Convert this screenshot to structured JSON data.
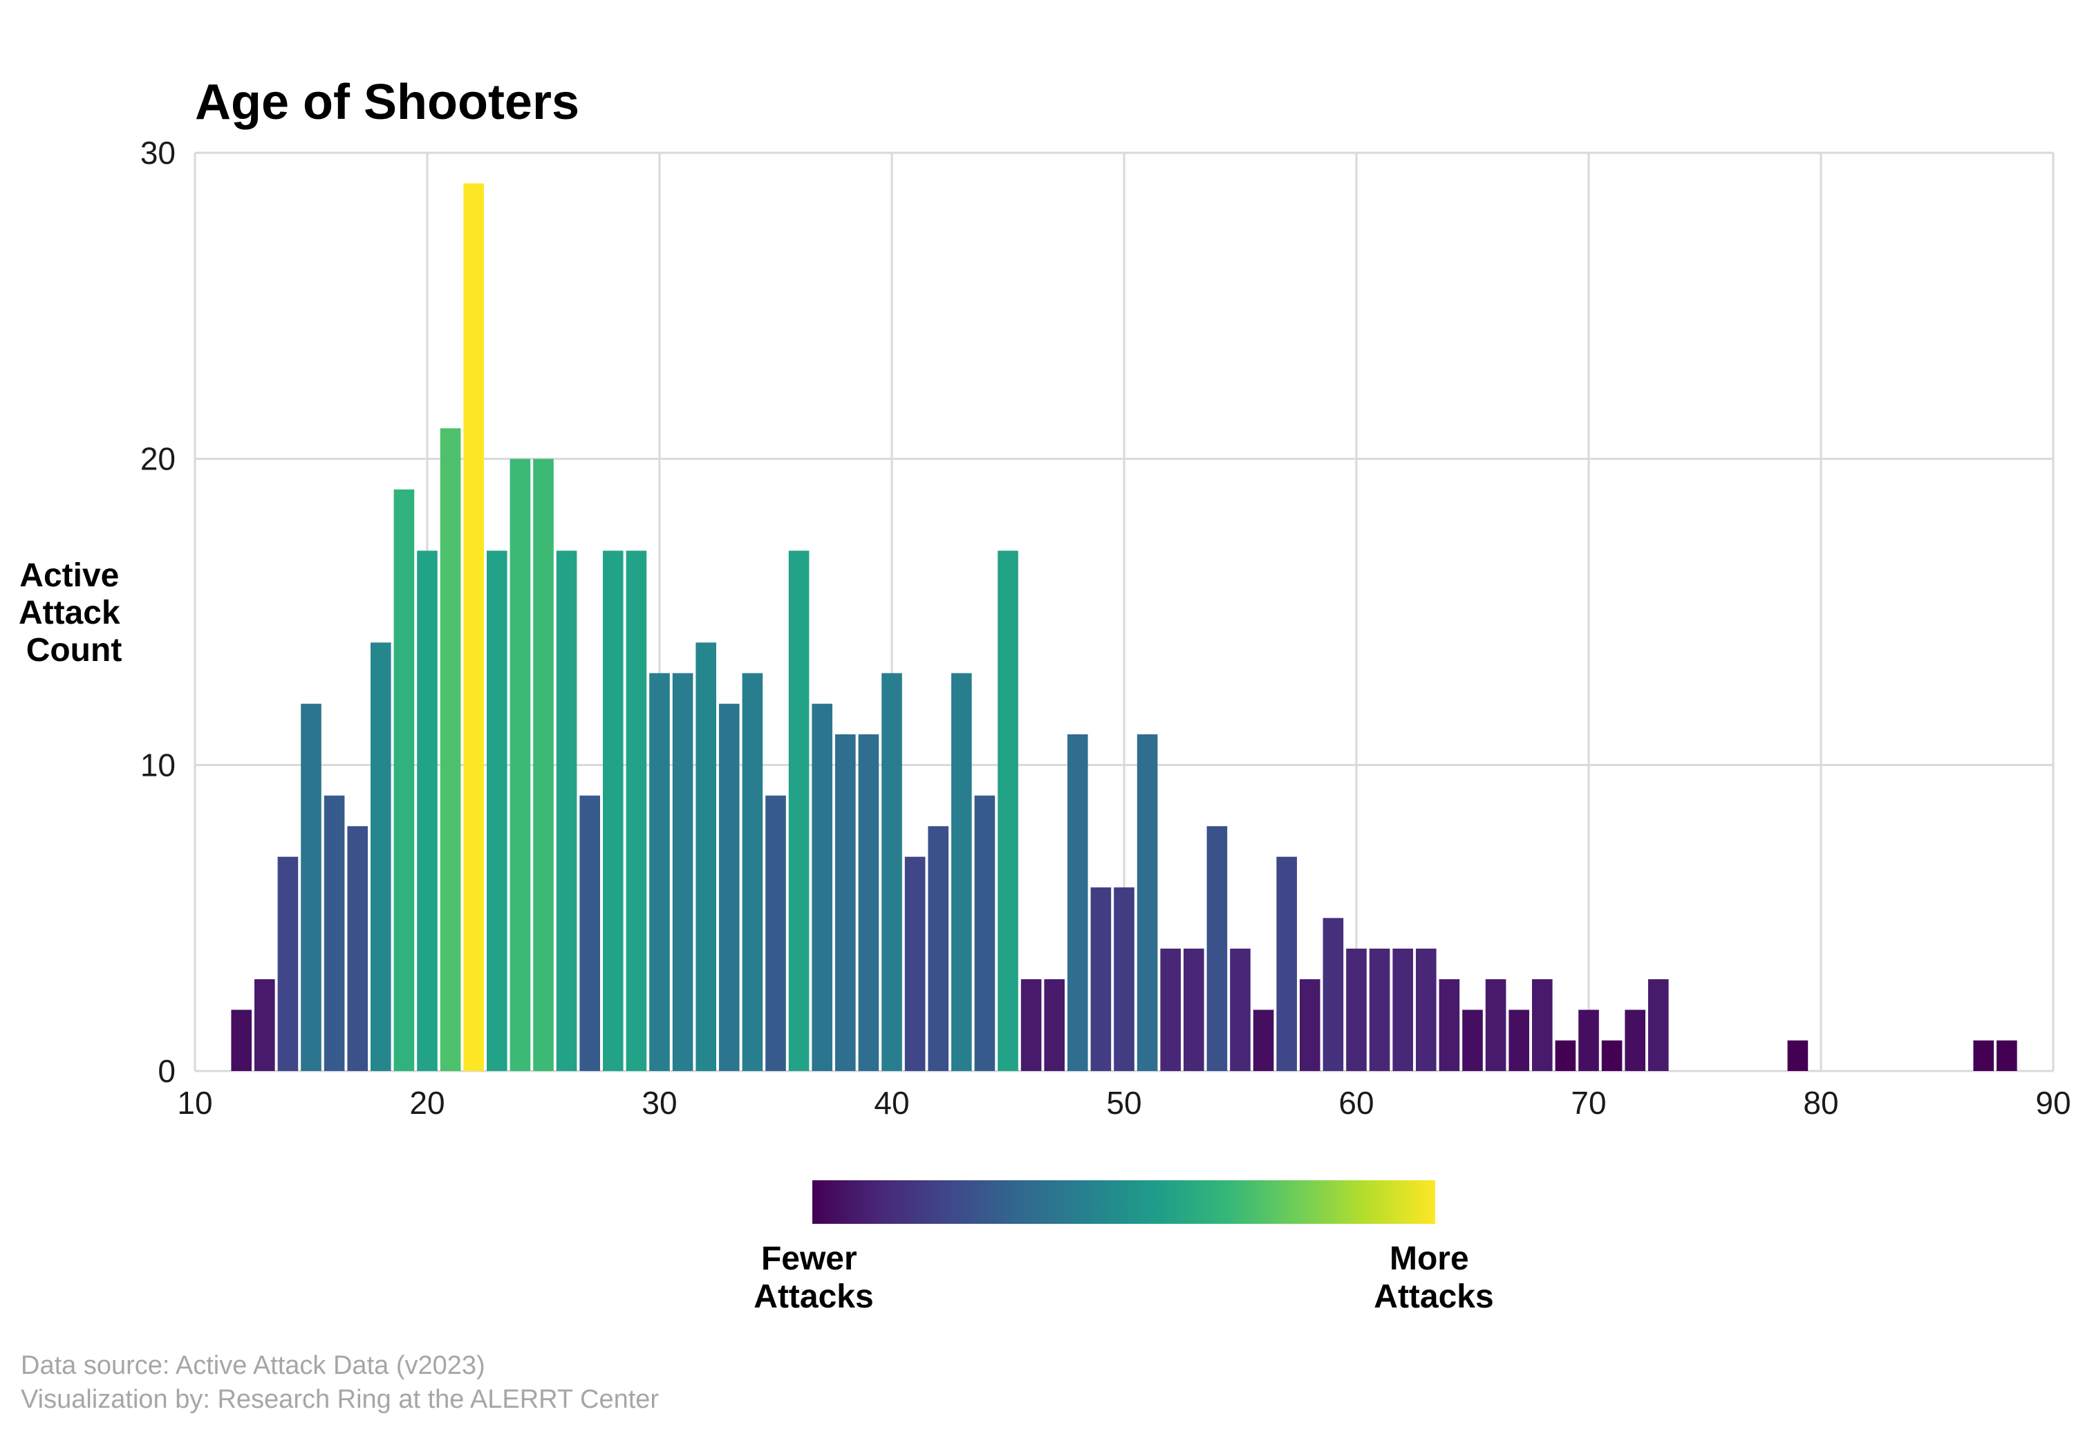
{
  "chart_data": {
    "type": "bar",
    "title": "Age of Shooters",
    "ylabel": [
      "Active",
      "Attack",
      "Count"
    ],
    "xlabel": "",
    "xlim": [
      10,
      90
    ],
    "ylim": [
      0,
      30
    ],
    "xticks": [
      "10",
      "20",
      "30",
      "40",
      "50",
      "60",
      "70",
      "80",
      "90"
    ],
    "yticks": [
      "0",
      "10",
      "20",
      "30"
    ],
    "grid": true,
    "x": [
      12,
      13,
      14,
      15,
      16,
      17,
      18,
      19,
      20,
      21,
      22,
      23,
      24,
      25,
      26,
      27,
      28,
      29,
      30,
      31,
      32,
      33,
      34,
      35,
      36,
      37,
      38,
      39,
      40,
      41,
      42,
      43,
      44,
      45,
      46,
      47,
      48,
      49,
      50,
      51,
      52,
      53,
      54,
      55,
      56,
      57,
      58,
      59,
      60,
      61,
      62,
      63,
      64,
      65,
      66,
      67,
      68,
      69,
      70,
      71,
      72,
      73,
      79,
      87,
      88
    ],
    "values": [
      2,
      3,
      7,
      12,
      9,
      8,
      14,
      19,
      17,
      21,
      29,
      17,
      20,
      20,
      17,
      9,
      17,
      17,
      13,
      13,
      14,
      12,
      13,
      9,
      17,
      12,
      11,
      11,
      13,
      7,
      8,
      13,
      9,
      17,
      3,
      3,
      11,
      6,
      6,
      11,
      4,
      4,
      8,
      4,
      2,
      7,
      3,
      5,
      4,
      4,
      4,
      4,
      3,
      2,
      3,
      2,
      3,
      1,
      2,
      1,
      2,
      3,
      1,
      1,
      1
    ],
    "colorscale": {
      "name": "viridis",
      "colors": [
        "#440154",
        "#482878",
        "#3e4989",
        "#31688e",
        "#26828e",
        "#1f9e89",
        "#35b779",
        "#6ece58",
        "#b5de2b",
        "#fde725"
      ],
      "low_label": [
        "Fewer",
        "Attacks"
      ],
      "high_label": [
        "More",
        "Attacks"
      ]
    },
    "caption": [
      "Data source: Active Attack Data (v2023)",
      "Visualization by: Research Ring at the ALERRT Center"
    ]
  }
}
